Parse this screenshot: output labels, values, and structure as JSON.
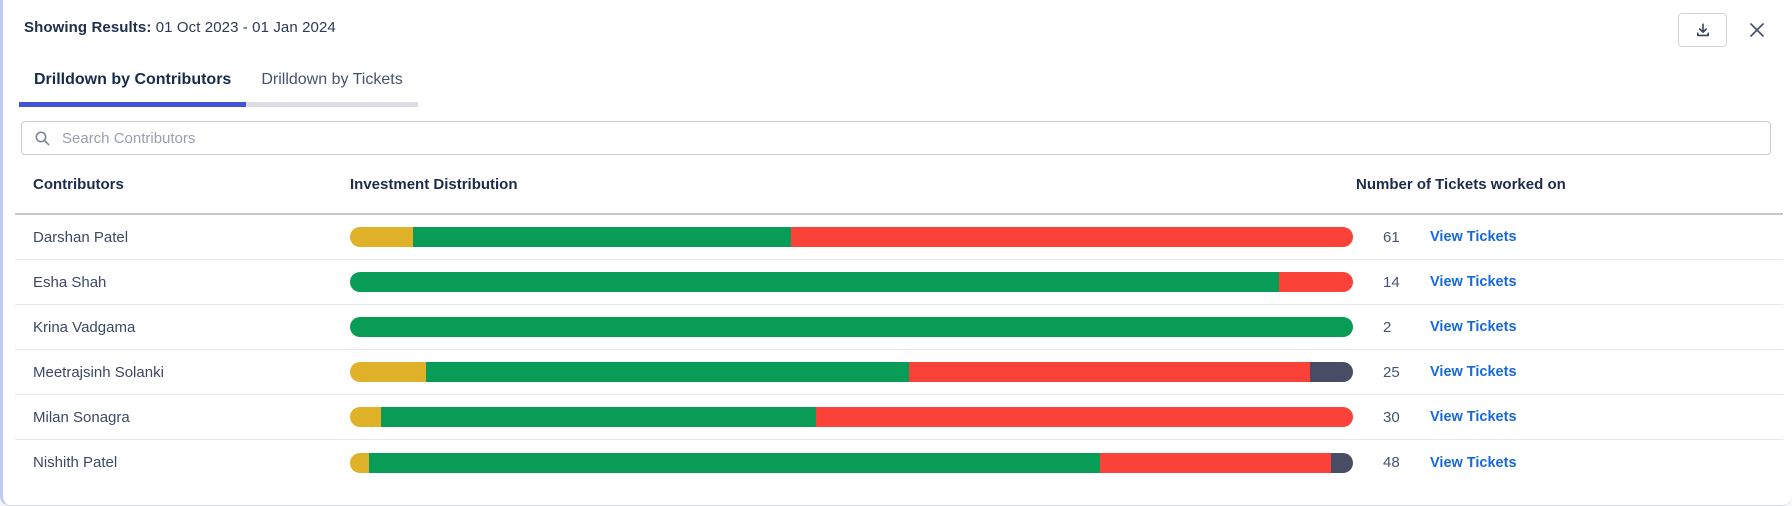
{
  "header": {
    "results_label": "Showing Results:",
    "date_range": "01 Oct 2023 - 01 Jan 2024"
  },
  "tabs": [
    {
      "label": "Drilldown by Contributors",
      "active": true
    },
    {
      "label": "Drilldown by Tickets",
      "active": false
    }
  ],
  "search": {
    "placeholder": "Search Contributors",
    "value": ""
  },
  "table": {
    "columns": [
      "Contributors",
      "Investment Distribution",
      "Number of Tickets worked on"
    ],
    "view_tickets_label": "View Tickets",
    "rows": [
      {
        "contributor": "Darshan Patel",
        "tickets": "61",
        "segments": [
          {
            "color_key": "yellow",
            "pct": 6.3
          },
          {
            "color_key": "green",
            "pct": 37.7
          },
          {
            "color_key": "red",
            "pct": 56.0
          }
        ]
      },
      {
        "contributor": "Esha Shah",
        "tickets": "14",
        "segments": [
          {
            "color_key": "green",
            "pct": 92.6
          },
          {
            "color_key": "red",
            "pct": 7.4
          }
        ]
      },
      {
        "contributor": "Krina Vadgama",
        "tickets": "2",
        "segments": [
          {
            "color_key": "green",
            "pct": 100
          }
        ]
      },
      {
        "contributor": "Meetrajsinh Solanki",
        "tickets": "25",
        "segments": [
          {
            "color_key": "yellow",
            "pct": 7.6
          },
          {
            "color_key": "green",
            "pct": 48.1
          },
          {
            "color_key": "red",
            "pct": 40.0
          },
          {
            "color_key": "dark",
            "pct": 4.3
          }
        ]
      },
      {
        "contributor": "Milan Sonagra",
        "tickets": "30",
        "segments": [
          {
            "color_key": "yellow",
            "pct": 3.1
          },
          {
            "color_key": "green",
            "pct": 43.4
          },
          {
            "color_key": "red",
            "pct": 53.5
          }
        ]
      },
      {
        "contributor": "Nishith Patel",
        "tickets": "48",
        "segments": [
          {
            "color_key": "yellow",
            "pct": 1.9
          },
          {
            "color_key": "green",
            "pct": 72.9
          },
          {
            "color_key": "red",
            "pct": 23.0
          },
          {
            "color_key": "dark",
            "pct": 2.2
          }
        ]
      }
    ]
  },
  "colors": {
    "yellow": "#dfb229",
    "green": "#089c57",
    "red": "#fb4238",
    "dark": "#484c64",
    "tab_accent": "#4353d9",
    "link_blue": "#1868db"
  }
}
